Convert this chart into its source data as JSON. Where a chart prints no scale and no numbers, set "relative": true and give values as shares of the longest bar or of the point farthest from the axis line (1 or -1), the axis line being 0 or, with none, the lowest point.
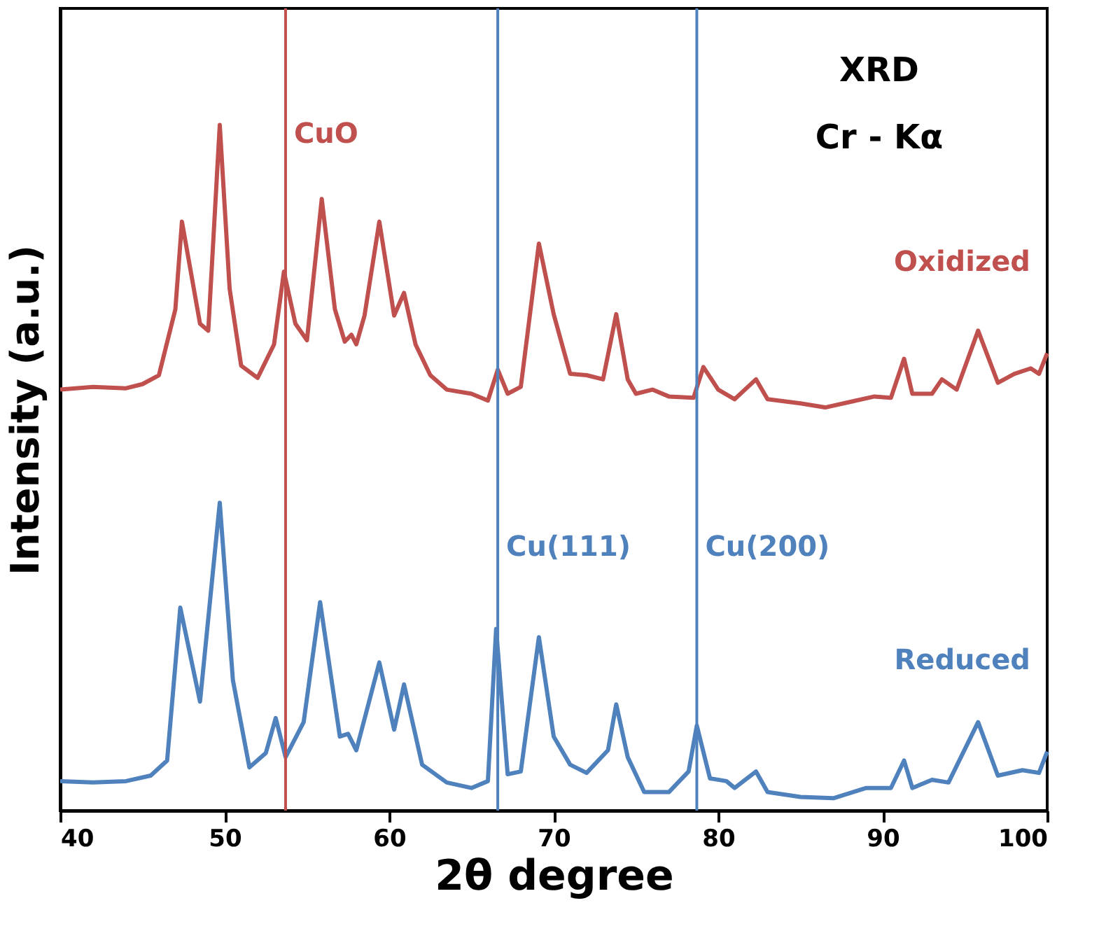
{
  "chart_data": {
    "type": "line",
    "relative": true,
    "xlabel": "2θ degree",
    "ylabel": "Intensity (a.u.)",
    "xlim": [
      40,
      100
    ],
    "xticks": [
      40,
      50,
      60,
      70,
      80,
      90,
      100
    ],
    "tick_labels": "x",
    "grid": false,
    "legend": false,
    "marker": "none",
    "line_style": "solid",
    "annotations": [
      "XRD",
      "Cr - Kα"
    ],
    "ref_lines": [
      {
        "axis": "x",
        "value": 53.7,
        "label": "CuO",
        "color": "#c0504d"
      },
      {
        "axis": "x",
        "value": 66.6,
        "label": "Cu(111)",
        "color": "#4f81bd"
      },
      {
        "axis": "x",
        "value": 78.7,
        "label": "Cu(200)",
        "color": "#4f81bd"
      }
    ],
    "series": [
      {
        "name": "Oxidized",
        "color": "#c0504d",
        "x": [
          40,
          42,
          44,
          45,
          46,
          47,
          47.4,
          48.5,
          49,
          49.7,
          50.3,
          51,
          52,
          53,
          53.6,
          54.3,
          55,
          55.9,
          56.7,
          57.3,
          57.7,
          58,
          58.5,
          59.4,
          60.3,
          60.9,
          61.6,
          62.5,
          63.5,
          65,
          66,
          66.6,
          67.2,
          68,
          69.1,
          70,
          71,
          72,
          73,
          73.8,
          74.5,
          75,
          76,
          77,
          78.5,
          79.1,
          80,
          81,
          82.3,
          83,
          85,
          86.5,
          88,
          89.5,
          90.5,
          91.3,
          91.8,
          93,
          93.6,
          94.5,
          95.8,
          97,
          98,
          99,
          99.5,
          100
        ],
        "values": [
          0.614,
          0.618,
          0.616,
          0.622,
          0.635,
          0.731,
          0.859,
          0.71,
          0.7,
          1.0,
          0.761,
          0.649,
          0.631,
          0.68,
          0.786,
          0.71,
          0.686,
          0.892,
          0.731,
          0.684,
          0.694,
          0.68,
          0.722,
          0.859,
          0.722,
          0.755,
          0.68,
          0.635,
          0.614,
          0.608,
          0.598,
          0.643,
          0.608,
          0.618,
          0.827,
          0.724,
          0.637,
          0.635,
          0.629,
          0.724,
          0.629,
          0.608,
          0.614,
          0.604,
          0.602,
          0.647,
          0.614,
          0.6,
          0.629,
          0.6,
          0.594,
          0.588,
          0.596,
          0.604,
          0.602,
          0.659,
          0.608,
          0.608,
          0.629,
          0.614,
          0.7,
          0.624,
          0.637,
          0.645,
          0.637,
          0.667
        ]
      },
      {
        "name": "Reduced",
        "color": "#4f81bd",
        "x": [
          40,
          42,
          44,
          45.5,
          46.5,
          47.3,
          48.5,
          49.7,
          50.5,
          51.5,
          52.5,
          53.1,
          53.7,
          54.8,
          55.8,
          57,
          57.5,
          58,
          59.4,
          60.3,
          60.9,
          62,
          63.5,
          65,
          66,
          66.5,
          67.2,
          68,
          69.1,
          70,
          71,
          72,
          73.3,
          73.8,
          74.5,
          75.5,
          77,
          78.2,
          78.7,
          79.5,
          80.5,
          81,
          82.3,
          83,
          85,
          87,
          89,
          90.5,
          91.3,
          91.8,
          93,
          94,
          95.8,
          97,
          98.5,
          99.5,
          100
        ],
        "values": [
          0.043,
          0.041,
          0.043,
          0.051,
          0.073,
          0.296,
          0.159,
          0.449,
          0.19,
          0.063,
          0.084,
          0.135,
          0.078,
          0.129,
          0.304,
          0.108,
          0.112,
          0.088,
          0.216,
          0.118,
          0.184,
          0.067,
          0.041,
          0.033,
          0.043,
          0.265,
          0.053,
          0.057,
          0.253,
          0.108,
          0.067,
          0.055,
          0.088,
          0.155,
          0.078,
          0.027,
          0.027,
          0.057,
          0.124,
          0.047,
          0.043,
          0.033,
          0.057,
          0.027,
          0.02,
          0.018,
          0.033,
          0.033,
          0.073,
          0.033,
          0.045,
          0.041,
          0.129,
          0.051,
          0.059,
          0.055,
          0.086
        ]
      }
    ]
  }
}
